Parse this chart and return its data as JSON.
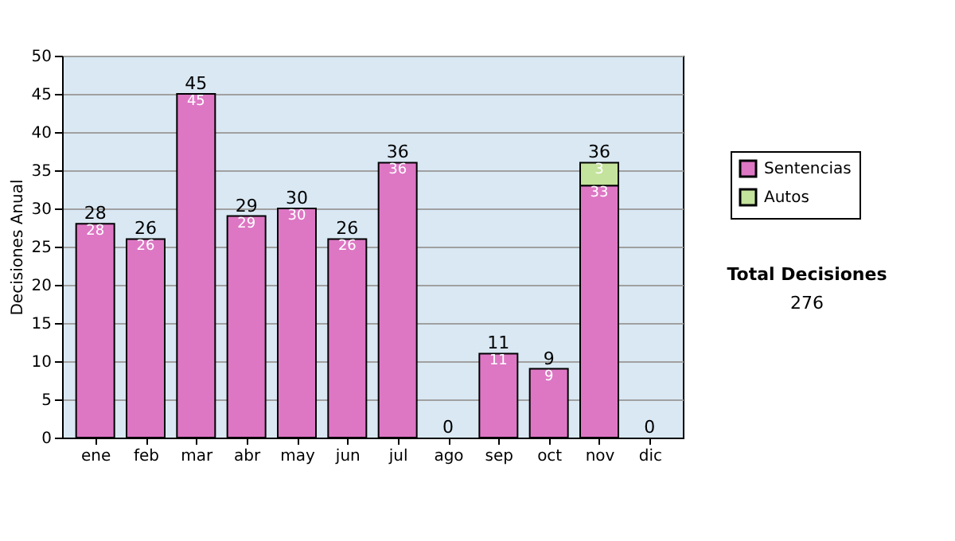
{
  "chart_data": {
    "type": "bar",
    "stacked": true,
    "ylabel": "Decisiones Anual",
    "categories": [
      "ene",
      "feb",
      "mar",
      "abr",
      "may",
      "jun",
      "jul",
      "ago",
      "sep",
      "oct",
      "nov",
      "dic"
    ],
    "series": [
      {
        "name": "Sentencias",
        "color": "#dd77c4",
        "values": [
          28,
          26,
          45,
          29,
          30,
          26,
          36,
          0,
          11,
          9,
          33,
          0
        ],
        "value_labels": [
          "28",
          "26",
          "45",
          "29",
          "30",
          "26",
          "36",
          null,
          "11",
          "9",
          "33",
          null
        ]
      },
      {
        "name": "Autos",
        "color": "#c4e39c",
        "values": [
          0,
          0,
          0,
          0,
          0,
          0,
          0,
          0,
          0,
          0,
          3,
          0
        ],
        "value_labels": [
          null,
          null,
          null,
          null,
          null,
          null,
          null,
          null,
          null,
          null,
          "3",
          null
        ]
      }
    ],
    "totals": [
      "28",
      "26",
      "45",
      "29",
      "30",
      "26",
      "36",
      "0",
      "11",
      "9",
      "36",
      "0"
    ],
    "ylim": [
      0,
      50
    ],
    "yticks": [
      0,
      5,
      10,
      15,
      20,
      25,
      30,
      35,
      40,
      45,
      50
    ],
    "grid": "y",
    "legend": "right",
    "annotations": [
      "Total Decisiones",
      "276"
    ]
  }
}
